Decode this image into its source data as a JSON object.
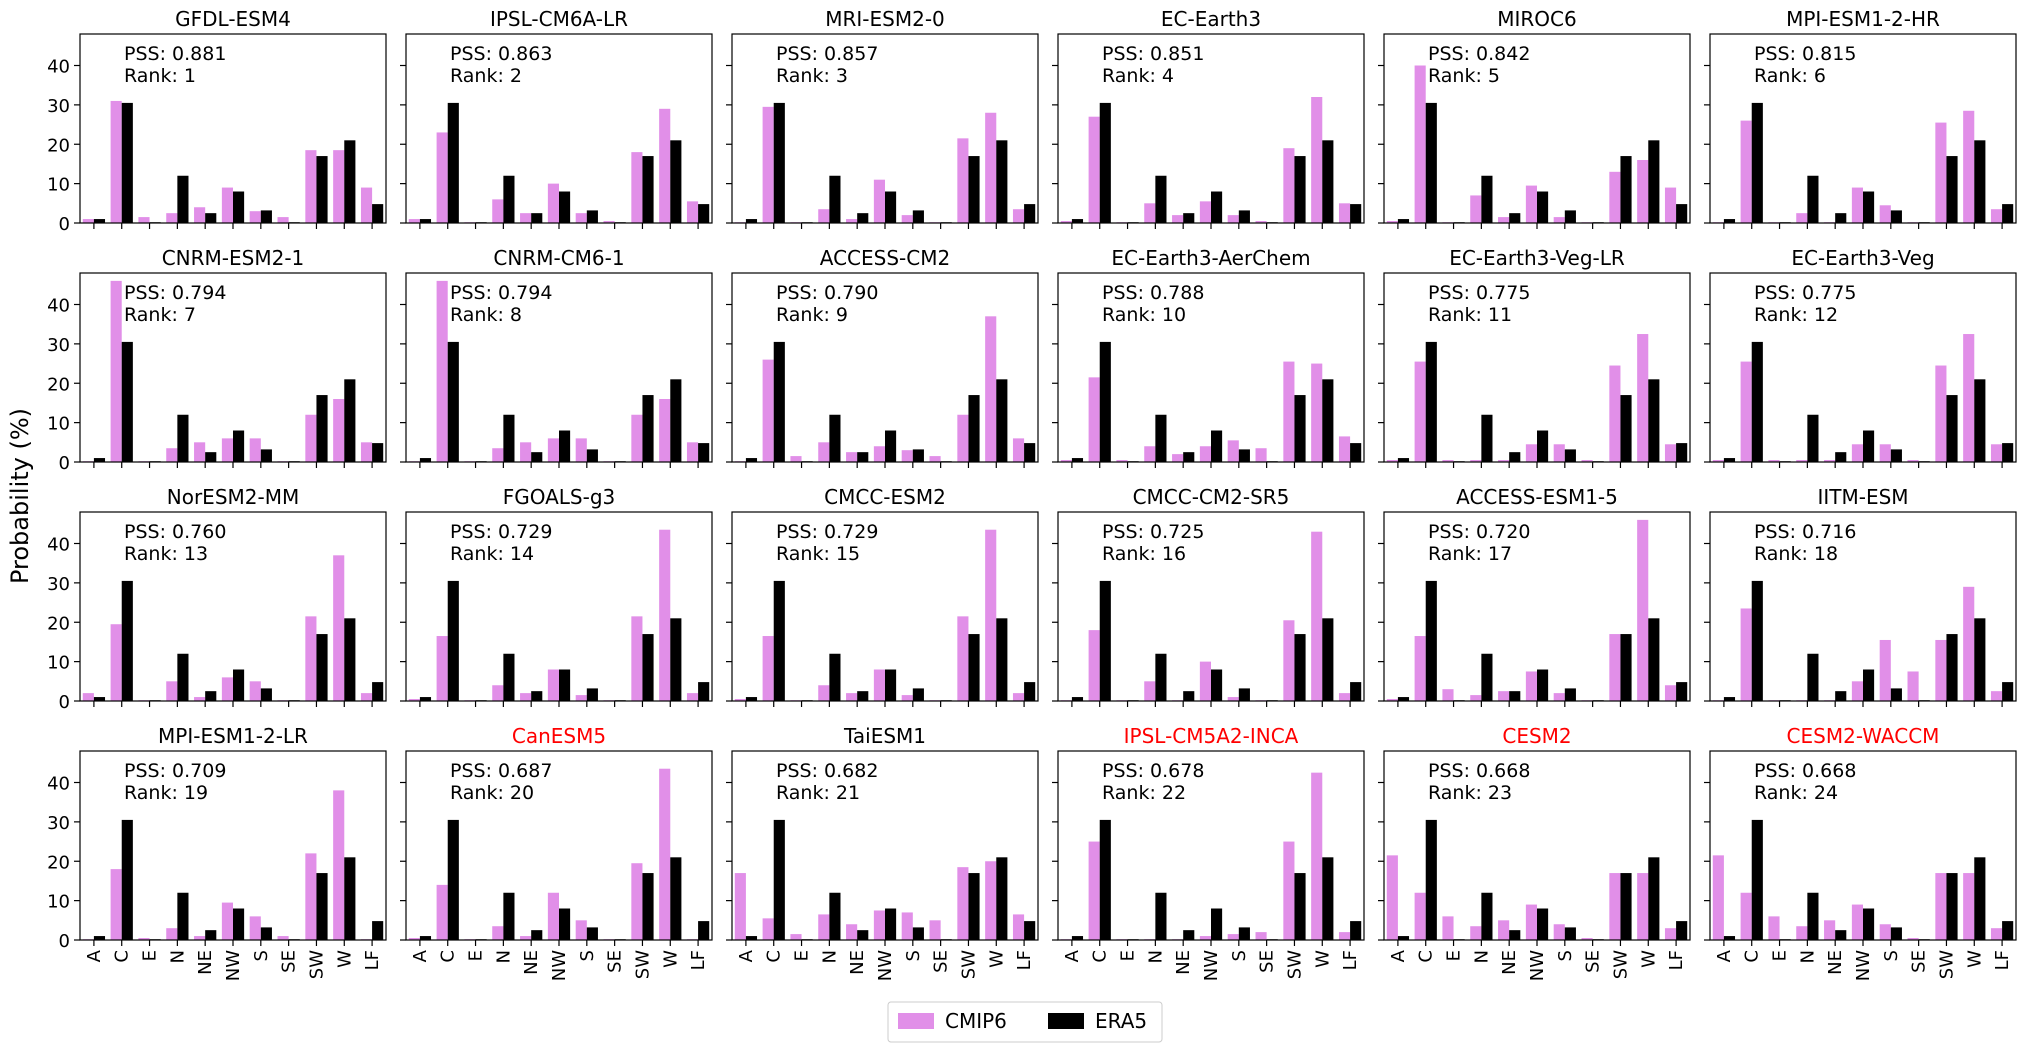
{
  "chart_data": {
    "type": "bar",
    "ylabel": "Probability (%)",
    "categories": [
      "A",
      "C",
      "E",
      "N",
      "NE",
      "NW",
      "S",
      "SE",
      "SW",
      "W",
      "LF"
    ],
    "ylim": [
      0,
      48
    ],
    "yticks": [
      0,
      10,
      20,
      30,
      40
    ],
    "colors": {
      "CMIP6": "#e18fe8",
      "ERA5": "#000000",
      "highlight_title": "#ff0000",
      "normal_title": "#000000"
    },
    "legend": {
      "position": "bottom-center",
      "entries": [
        "CMIP6",
        "ERA5"
      ]
    },
    "era5": [
      1,
      30.5,
      0.2,
      12,
      2.5,
      8,
      3.2,
      0.2,
      17,
      21,
      4.8
    ],
    "panels": [
      {
        "title": "GFDL-ESM4",
        "pss": "PSS: 0.881",
        "rank": "Rank: 1",
        "highlight": false,
        "cmip6": [
          1,
          31,
          1.5,
          2.5,
          4,
          9,
          3,
          1.5,
          18.5,
          18.5,
          9
        ]
      },
      {
        "title": "IPSL-CM6A-LR",
        "pss": "PSS: 0.863",
        "rank": "Rank: 2",
        "highlight": false,
        "cmip6": [
          1,
          23,
          0.2,
          6,
          2.5,
          10,
          2.5,
          0.5,
          18,
          29,
          5.5
        ]
      },
      {
        "title": "MRI-ESM2-0",
        "pss": "PSS: 0.857",
        "rank": "Rank: 3",
        "highlight": false,
        "cmip6": [
          0.2,
          29.5,
          0.2,
          3.5,
          1,
          11,
          2,
          0.2,
          21.5,
          28,
          3.5
        ]
      },
      {
        "title": "EC-Earth3",
        "pss": "PSS: 0.851",
        "rank": "Rank: 4",
        "highlight": false,
        "cmip6": [
          0.5,
          27,
          0.2,
          5,
          2,
          5.5,
          2,
          0.5,
          19,
          32,
          5
        ]
      },
      {
        "title": "MIROC6",
        "pss": "PSS: 0.842",
        "rank": "Rank: 5",
        "highlight": false,
        "cmip6": [
          0.5,
          40,
          0.2,
          7,
          1.5,
          9.5,
          1.5,
          0.2,
          13,
          16,
          9
        ]
      },
      {
        "title": "MPI-ESM1-2-HR",
        "pss": "PSS: 0.815",
        "rank": "Rank: 6",
        "highlight": false,
        "cmip6": [
          0.2,
          26,
          0.2,
          2.5,
          0.2,
          9,
          4.5,
          0.2,
          25.5,
          28.5,
          3.5
        ]
      },
      {
        "title": "CNRM-ESM2-1",
        "pss": "PSS: 0.794",
        "rank": "Rank: 7",
        "highlight": false,
        "cmip6": [
          0.2,
          46,
          0.2,
          3.5,
          5,
          6,
          6,
          0.2,
          12,
          16,
          5
        ]
      },
      {
        "title": "CNRM-CM6-1",
        "pss": "PSS: 0.794",
        "rank": "Rank: 8",
        "highlight": false,
        "cmip6": [
          0.2,
          46,
          0.2,
          3.5,
          5,
          6,
          6,
          0.2,
          12,
          16,
          5
        ]
      },
      {
        "title": "ACCESS-CM2",
        "pss": "PSS: 0.790",
        "rank": "Rank: 9",
        "highlight": false,
        "cmip6": [
          0.2,
          26,
          1.5,
          5,
          2.5,
          4,
          3,
          1.5,
          12,
          37,
          6
        ]
      },
      {
        "title": "EC-Earth3-AerChem",
        "pss": "PSS: 0.788",
        "rank": "Rank: 10",
        "highlight": false,
        "cmip6": [
          0.5,
          21.5,
          0.5,
          4,
          2,
          4,
          5.5,
          3.5,
          25.5,
          25,
          6.5
        ]
      },
      {
        "title": "EC-Earth3-Veg-LR",
        "pss": "PSS: 0.775",
        "rank": "Rank: 11",
        "highlight": false,
        "cmip6": [
          0.5,
          25.5,
          0.5,
          0.5,
          0.5,
          4.5,
          4.5,
          0.5,
          24.5,
          32.5,
          4.5
        ]
      },
      {
        "title": "EC-Earth3-Veg",
        "pss": "PSS: 0.775",
        "rank": "Rank: 12",
        "highlight": false,
        "cmip6": [
          0.5,
          25.5,
          0.5,
          0.5,
          0.5,
          4.5,
          4.5,
          0.5,
          24.5,
          32.5,
          4.5
        ]
      },
      {
        "title": "NorESM2-MM",
        "pss": "PSS: 0.760",
        "rank": "Rank: 13",
        "highlight": false,
        "cmip6": [
          2,
          19.5,
          0.2,
          5,
          1,
          6,
          5,
          0.2,
          21.5,
          37,
          2
        ]
      },
      {
        "title": "FGOALS-g3",
        "pss": "PSS: 0.729",
        "rank": "Rank: 14",
        "highlight": false,
        "cmip6": [
          0.5,
          16.5,
          0.2,
          4,
          2,
          8,
          1.5,
          0.2,
          21.5,
          43.5,
          2
        ]
      },
      {
        "title": "CMCC-ESM2",
        "pss": "PSS: 0.729",
        "rank": "Rank: 15",
        "highlight": false,
        "cmip6": [
          0.5,
          16.5,
          0.2,
          4,
          2,
          8,
          1.5,
          0.2,
          21.5,
          43.5,
          2
        ]
      },
      {
        "title": "CMCC-CM2-SR5",
        "pss": "PSS: 0.725",
        "rank": "Rank: 16",
        "highlight": false,
        "cmip6": [
          0.2,
          18,
          0.2,
          5,
          0.2,
          10,
          1,
          0.2,
          20.5,
          43,
          2
        ]
      },
      {
        "title": "ACCESS-ESM1-5",
        "pss": "PSS: 0.720",
        "rank": "Rank: 17",
        "highlight": false,
        "cmip6": [
          0.5,
          16.5,
          3,
          1.5,
          2.5,
          7.5,
          2,
          0.2,
          17,
          46,
          4
        ]
      },
      {
        "title": "IITM-ESM",
        "pss": "PSS: 0.716",
        "rank": "Rank: 18",
        "highlight": false,
        "cmip6": [
          0.2,
          23.5,
          0.2,
          0.2,
          0.2,
          5,
          15.5,
          7.5,
          15.5,
          29,
          2.5
        ]
      },
      {
        "title": "MPI-ESM1-2-LR",
        "pss": "PSS: 0.709",
        "rank": "Rank: 19",
        "highlight": false,
        "cmip6": [
          0.2,
          18,
          0.5,
          3,
          1,
          9.5,
          6,
          1,
          22,
          38,
          0.2
        ]
      },
      {
        "title": "CanESM5",
        "pss": "PSS: 0.687",
        "rank": "Rank: 20",
        "highlight": true,
        "cmip6": [
          0.5,
          14,
          0.2,
          3.5,
          1,
          12,
          5,
          0.2,
          19.5,
          43.5,
          0.2
        ]
      },
      {
        "title": "TaiESM1",
        "pss": "PSS: 0.682",
        "rank": "Rank: 21",
        "highlight": false,
        "cmip6": [
          17,
          5.5,
          1.5,
          6.5,
          4,
          7.5,
          7,
          5,
          18.5,
          20,
          6.5
        ]
      },
      {
        "title": "IPSL-CM5A2-INCA",
        "pss": "PSS: 0.678",
        "rank": "Rank: 22",
        "highlight": true,
        "cmip6": [
          0.2,
          25,
          0.2,
          0.2,
          0.2,
          1,
          1.5,
          2,
          25,
          42.5,
          2
        ]
      },
      {
        "title": "CESM2",
        "pss": "PSS: 0.668",
        "rank": "Rank: 23",
        "highlight": true,
        "cmip6": [
          21.5,
          12,
          6,
          3.5,
          5,
          9,
          4,
          0.5,
          17,
          17,
          3
        ]
      },
      {
        "title": "CESM2-WACCM",
        "pss": "PSS: 0.668",
        "rank": "Rank: 24",
        "highlight": true,
        "cmip6": [
          21.5,
          12,
          6,
          3.5,
          5,
          9,
          4,
          0.5,
          17,
          17,
          3
        ]
      }
    ]
  }
}
